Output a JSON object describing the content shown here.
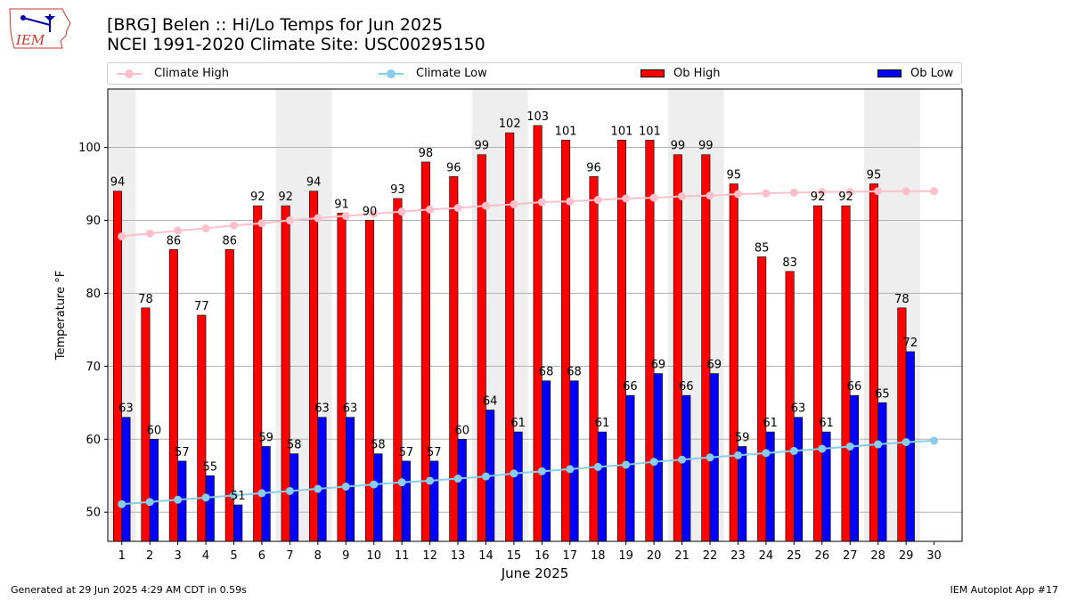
{
  "header": {
    "logo_text": "IEM",
    "title_line1": "[BRG] Belen :: Hi/Lo Temps for Jun 2025",
    "title_line2": "NCEI 1991-2020 Climate Site: USC00295150"
  },
  "legend": {
    "climate_high": "Climate High",
    "climate_low": "Climate Low",
    "ob_high": "Ob High",
    "ob_low": "Ob Low"
  },
  "footer": {
    "generated": "Generated at 29 Jun 2025 4:29 AM CDT in 0.59s",
    "app": "IEM Autoplot App #17"
  },
  "chart_data": {
    "type": "bar",
    "xlabel": "June 2025",
    "ylabel": "Temperature °F",
    "ylim": [
      46,
      108
    ],
    "yticks": [
      50,
      60,
      70,
      80,
      90,
      100
    ],
    "grid": true,
    "legend_position": "top",
    "categories": [
      "1",
      "2",
      "3",
      "4",
      "5",
      "6",
      "7",
      "8",
      "9",
      "10",
      "11",
      "12",
      "13",
      "14",
      "15",
      "16",
      "17",
      "18",
      "19",
      "20",
      "21",
      "22",
      "23",
      "24",
      "25",
      "26",
      "27",
      "28",
      "29",
      "30"
    ],
    "weekend_days": [
      1,
      7,
      8,
      14,
      15,
      21,
      22,
      28,
      29
    ],
    "colors": {
      "ob_high": "#ff0000",
      "ob_low": "#0000ff",
      "climate_high": "#ffc0cb",
      "climate_low": "#87ceeb",
      "weekend_shade": "#eeeeee"
    },
    "series": [
      {
        "name": "Ob High",
        "type": "bar",
        "values": [
          94,
          78,
          86,
          77,
          86,
          92,
          92,
          94,
          91,
          90,
          93,
          98,
          96,
          99,
          102,
          103,
          101,
          96,
          101,
          101,
          99,
          99,
          95,
          85,
          83,
          92,
          92,
          95,
          78,
          null
        ]
      },
      {
        "name": "Ob Low",
        "type": "bar",
        "values": [
          63,
          60,
          57,
          55,
          51,
          59,
          58,
          63,
          63,
          58,
          57,
          57,
          60,
          64,
          61,
          68,
          68,
          61,
          66,
          69,
          66,
          69,
          59,
          61,
          63,
          61,
          66,
          65,
          72,
          null
        ]
      },
      {
        "name": "Climate High",
        "type": "line",
        "values": [
          87.8,
          88.2,
          88.6,
          88.9,
          89.3,
          89.6,
          90.0,
          90.3,
          90.6,
          90.9,
          91.2,
          91.5,
          91.7,
          92.0,
          92.2,
          92.5,
          92.6,
          92.8,
          93.0,
          93.1,
          93.3,
          93.4,
          93.6,
          93.7,
          93.8,
          93.9,
          93.9,
          94.0,
          94.0,
          94.0
        ]
      },
      {
        "name": "Climate Low",
        "type": "line",
        "values": [
          51.1,
          51.4,
          51.7,
          52.0,
          52.3,
          52.6,
          52.9,
          53.2,
          53.5,
          53.8,
          54.1,
          54.3,
          54.6,
          54.9,
          55.3,
          55.6,
          55.9,
          56.2,
          56.5,
          56.9,
          57.2,
          57.5,
          57.8,
          58.1,
          58.4,
          58.7,
          59.0,
          59.3,
          59.6,
          59.8
        ]
      }
    ]
  }
}
